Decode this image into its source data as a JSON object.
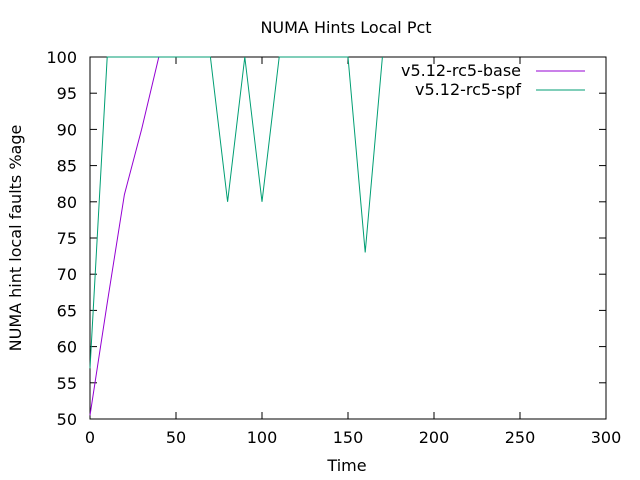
{
  "chart_data": {
    "type": "line",
    "title": "NUMA Hints Local Pct",
    "xlabel": "Time",
    "ylabel": "NUMA hint local faults %age",
    "xlim": [
      0,
      300
    ],
    "ylim": [
      50,
      100
    ],
    "xticks": [
      0,
      50,
      100,
      150,
      200,
      250,
      300
    ],
    "yticks": [
      50,
      55,
      60,
      65,
      70,
      75,
      80,
      85,
      90,
      95,
      100
    ],
    "grid": false,
    "legend_position": "top-right",
    "series": [
      {
        "name": "v5.12-rc5-base",
        "color": "#9400d3",
        "x": [
          0,
          10,
          20,
          30,
          40
        ],
        "y": [
          50.5,
          66,
          81,
          90,
          100
        ]
      },
      {
        "name": "v5.12-rc5-spf",
        "color": "#009e73",
        "x": [
          0,
          10,
          70,
          80,
          90,
          100,
          110,
          150,
          160,
          170
        ],
        "y": [
          57,
          100,
          100,
          80,
          100,
          80,
          100,
          100,
          73,
          100
        ]
      }
    ]
  }
}
